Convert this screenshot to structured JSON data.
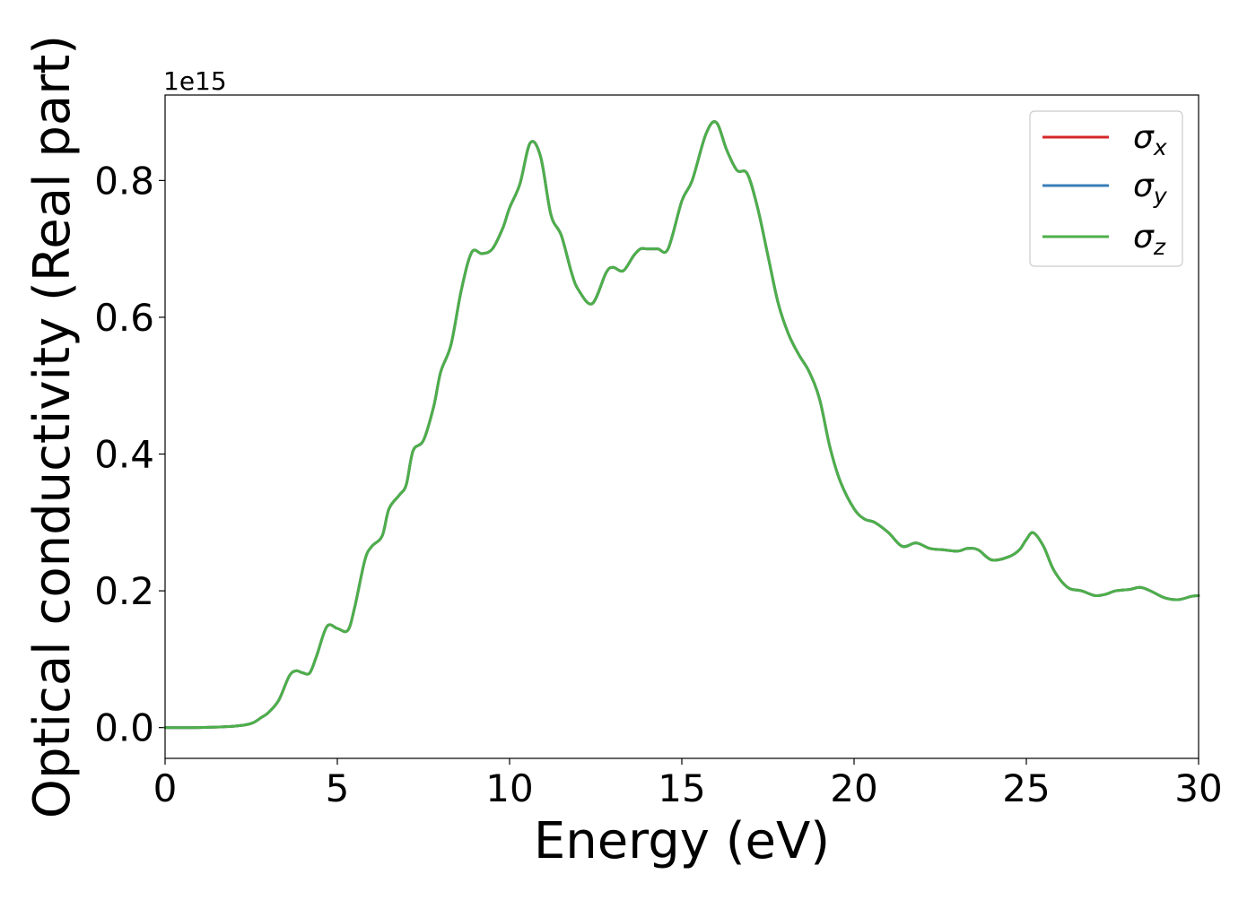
{
  "chart_data": {
    "type": "line",
    "xlabel": "Energy (eV)",
    "ylabel": "Optical conductivity (Real part)",
    "y_offset_label": "1e15",
    "xlim": [
      0,
      30
    ],
    "ylim": [
      -0.045,
      0.925
    ],
    "y_scale_factor": 1000000000000000.0,
    "xticks": [
      0,
      5,
      10,
      15,
      20,
      25,
      30
    ],
    "xtick_labels": [
      "0",
      "5",
      "10",
      "15",
      "20",
      "25",
      "30"
    ],
    "yticks": [
      0.0,
      0.2,
      0.4,
      0.6,
      0.8
    ],
    "ytick_labels": [
      "0.0",
      "0.2",
      "0.4",
      "0.6",
      "0.8"
    ],
    "grid": false,
    "legend_position": "top-right",
    "series_colors": [
      "#d62728",
      "#377eb8",
      "#4daf4a"
    ],
    "series": [
      {
        "name": "σx",
        "symbol": "σ",
        "subscript": "x",
        "color": "#d62728",
        "x": [
          0,
          1,
          2,
          2.5,
          2.8,
          3.0,
          3.3,
          3.6,
          3.8,
          4.0,
          4.2,
          4.4,
          4.7,
          5.0,
          5.3,
          5.5,
          5.8,
          6.0,
          6.3,
          6.5,
          6.8,
          7.0,
          7.2,
          7.5,
          7.8,
          8.0,
          8.3,
          8.6,
          8.9,
          9.2,
          9.5,
          9.8,
          10.0,
          10.3,
          10.6,
          10.9,
          11.2,
          11.5,
          11.8,
          12.0,
          12.4,
          12.8,
          13.0,
          13.3,
          13.6,
          13.8,
          14.0,
          14.3,
          14.6,
          15.0,
          15.3,
          15.7,
          16.0,
          16.3,
          16.6,
          16.9,
          17.2,
          17.5,
          17.8,
          18.1,
          18.4,
          18.7,
          19.0,
          19.3,
          19.6,
          20.0,
          20.3,
          20.6,
          21.0,
          21.4,
          21.8,
          22.2,
          22.6,
          23.0,
          23.3,
          23.6,
          24.0,
          24.5,
          24.8,
          25.0,
          25.2,
          25.5,
          25.8,
          26.2,
          26.6,
          27.0,
          27.3,
          27.6,
          28.0,
          28.3,
          28.6,
          29.0,
          29.4,
          29.8,
          30.0
        ],
        "y": [
          0.0,
          0.0,
          0.002,
          0.006,
          0.015,
          0.022,
          0.04,
          0.075,
          0.083,
          0.08,
          0.08,
          0.105,
          0.148,
          0.145,
          0.142,
          0.175,
          0.245,
          0.265,
          0.28,
          0.32,
          0.34,
          0.355,
          0.405,
          0.42,
          0.47,
          0.52,
          0.56,
          0.64,
          0.695,
          0.693,
          0.7,
          0.73,
          0.76,
          0.795,
          0.855,
          0.835,
          0.75,
          0.72,
          0.665,
          0.64,
          0.62,
          0.665,
          0.673,
          0.668,
          0.69,
          0.7,
          0.7,
          0.7,
          0.7,
          0.77,
          0.8,
          0.868,
          0.885,
          0.845,
          0.815,
          0.81,
          0.76,
          0.69,
          0.62,
          0.575,
          0.545,
          0.52,
          0.48,
          0.41,
          0.36,
          0.32,
          0.305,
          0.3,
          0.285,
          0.265,
          0.27,
          0.262,
          0.26,
          0.258,
          0.262,
          0.26,
          0.245,
          0.25,
          0.26,
          0.275,
          0.285,
          0.265,
          0.23,
          0.205,
          0.2,
          0.193,
          0.195,
          0.2,
          0.202,
          0.205,
          0.2,
          0.19,
          0.187,
          0.192,
          0.193
        ]
      },
      {
        "name": "σy",
        "symbol": "σ",
        "subscript": "y",
        "color": "#377eb8",
        "x": [
          0,
          1,
          2,
          2.5,
          2.8,
          3.0,
          3.3,
          3.6,
          3.8,
          4.0,
          4.2,
          4.4,
          4.7,
          5.0,
          5.3,
          5.5,
          5.8,
          6.0,
          6.3,
          6.5,
          6.8,
          7.0,
          7.2,
          7.5,
          7.8,
          8.0,
          8.3,
          8.6,
          8.9,
          9.2,
          9.5,
          9.8,
          10.0,
          10.3,
          10.6,
          10.9,
          11.2,
          11.5,
          11.8,
          12.0,
          12.4,
          12.8,
          13.0,
          13.3,
          13.6,
          13.8,
          14.0,
          14.3,
          14.6,
          15.0,
          15.3,
          15.7,
          16.0,
          16.3,
          16.6,
          16.9,
          17.2,
          17.5,
          17.8,
          18.1,
          18.4,
          18.7,
          19.0,
          19.3,
          19.6,
          20.0,
          20.3,
          20.6,
          21.0,
          21.4,
          21.8,
          22.2,
          22.6,
          23.0,
          23.3,
          23.6,
          24.0,
          24.5,
          24.8,
          25.0,
          25.2,
          25.5,
          25.8,
          26.2,
          26.6,
          27.0,
          27.3,
          27.6,
          28.0,
          28.3,
          28.6,
          29.0,
          29.4,
          29.8,
          30.0
        ],
        "y": [
          0.0,
          0.0,
          0.002,
          0.006,
          0.015,
          0.022,
          0.04,
          0.075,
          0.083,
          0.08,
          0.08,
          0.105,
          0.148,
          0.145,
          0.142,
          0.175,
          0.245,
          0.265,
          0.28,
          0.32,
          0.34,
          0.355,
          0.405,
          0.42,
          0.47,
          0.52,
          0.56,
          0.64,
          0.695,
          0.693,
          0.7,
          0.73,
          0.76,
          0.795,
          0.855,
          0.835,
          0.75,
          0.72,
          0.665,
          0.64,
          0.62,
          0.665,
          0.673,
          0.668,
          0.69,
          0.7,
          0.7,
          0.7,
          0.7,
          0.77,
          0.8,
          0.868,
          0.885,
          0.845,
          0.815,
          0.81,
          0.76,
          0.69,
          0.62,
          0.575,
          0.545,
          0.52,
          0.48,
          0.41,
          0.36,
          0.32,
          0.305,
          0.3,
          0.285,
          0.265,
          0.27,
          0.262,
          0.26,
          0.258,
          0.262,
          0.26,
          0.245,
          0.25,
          0.26,
          0.275,
          0.285,
          0.265,
          0.23,
          0.205,
          0.2,
          0.193,
          0.195,
          0.2,
          0.202,
          0.205,
          0.2,
          0.19,
          0.187,
          0.192,
          0.193
        ]
      },
      {
        "name": "σz",
        "symbol": "σ",
        "subscript": "z",
        "color": "#4daf4a",
        "x": [
          0,
          1,
          2,
          2.5,
          2.8,
          3.0,
          3.3,
          3.6,
          3.8,
          4.0,
          4.2,
          4.4,
          4.7,
          5.0,
          5.3,
          5.5,
          5.8,
          6.0,
          6.3,
          6.5,
          6.8,
          7.0,
          7.2,
          7.5,
          7.8,
          8.0,
          8.3,
          8.6,
          8.9,
          9.2,
          9.5,
          9.8,
          10.0,
          10.3,
          10.6,
          10.9,
          11.2,
          11.5,
          11.8,
          12.0,
          12.4,
          12.8,
          13.0,
          13.3,
          13.6,
          13.8,
          14.0,
          14.3,
          14.6,
          15.0,
          15.3,
          15.7,
          16.0,
          16.3,
          16.6,
          16.9,
          17.2,
          17.5,
          17.8,
          18.1,
          18.4,
          18.7,
          19.0,
          19.3,
          19.6,
          20.0,
          20.3,
          20.6,
          21.0,
          21.4,
          21.8,
          22.2,
          22.6,
          23.0,
          23.3,
          23.6,
          24.0,
          24.5,
          24.8,
          25.0,
          25.2,
          25.5,
          25.8,
          26.2,
          26.6,
          27.0,
          27.3,
          27.6,
          28.0,
          28.3,
          28.6,
          29.0,
          29.4,
          29.8,
          30.0
        ],
        "y": [
          0.0,
          0.0,
          0.002,
          0.006,
          0.015,
          0.022,
          0.04,
          0.075,
          0.083,
          0.08,
          0.08,
          0.105,
          0.148,
          0.145,
          0.142,
          0.175,
          0.245,
          0.265,
          0.28,
          0.32,
          0.34,
          0.355,
          0.405,
          0.42,
          0.47,
          0.52,
          0.56,
          0.64,
          0.695,
          0.693,
          0.7,
          0.73,
          0.76,
          0.795,
          0.855,
          0.835,
          0.75,
          0.72,
          0.665,
          0.64,
          0.62,
          0.665,
          0.673,
          0.668,
          0.69,
          0.7,
          0.7,
          0.7,
          0.7,
          0.77,
          0.8,
          0.868,
          0.885,
          0.845,
          0.815,
          0.81,
          0.76,
          0.69,
          0.62,
          0.575,
          0.545,
          0.52,
          0.48,
          0.41,
          0.36,
          0.32,
          0.305,
          0.3,
          0.285,
          0.265,
          0.27,
          0.262,
          0.26,
          0.258,
          0.262,
          0.26,
          0.245,
          0.25,
          0.26,
          0.275,
          0.285,
          0.265,
          0.23,
          0.205,
          0.2,
          0.193,
          0.195,
          0.2,
          0.202,
          0.205,
          0.2,
          0.19,
          0.187,
          0.192,
          0.193
        ]
      }
    ]
  }
}
